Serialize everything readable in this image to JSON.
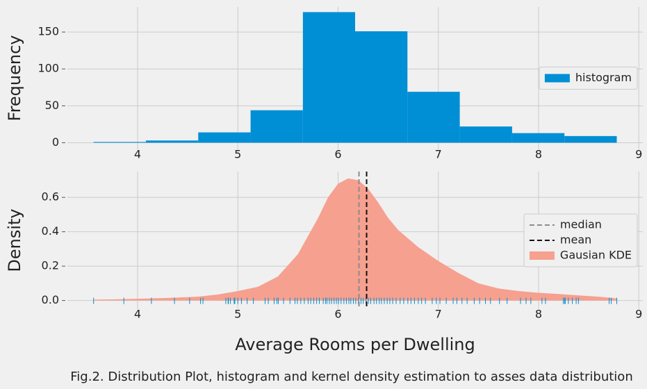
{
  "chart_data": [
    {
      "type": "histogram",
      "ylabel": "Frequency",
      "bins": [
        3.561,
        4.083,
        4.605,
        5.127,
        5.649,
        6.17,
        6.692,
        7.214,
        7.736,
        8.258,
        8.78
      ],
      "series": [
        {
          "name": "histogram",
          "color": "#008fd5",
          "values": [
            1,
            3,
            14,
            44,
            177,
            151,
            69,
            22,
            13,
            9
          ]
        }
      ],
      "xlim": [
        3.3,
        9.04
      ],
      "xticks": [
        4,
        5,
        6,
        7,
        8,
        9
      ],
      "ylim": [
        -9,
        184
      ],
      "yticks": [
        0,
        50,
        100,
        150
      ],
      "grid": true,
      "legend": "center right"
    },
    {
      "type": "kde",
      "ylabel": "Density",
      "xlabel": "Average Rooms per Dwelling",
      "x": [
        3.561,
        3.8,
        4.0,
        4.3,
        4.6,
        4.8,
        5.0,
        5.2,
        5.4,
        5.6,
        5.8,
        5.9,
        6.0,
        6.1,
        6.2,
        6.3,
        6.4,
        6.5,
        6.6,
        6.8,
        7.0,
        7.2,
        7.4,
        7.6,
        7.8,
        8.0,
        8.2,
        8.4,
        8.6,
        8.78
      ],
      "series": [
        {
          "name": "Gausian KDE",
          "color": "#f6a08f",
          "values": [
            0.005,
            0.007,
            0.01,
            0.015,
            0.022,
            0.035,
            0.055,
            0.08,
            0.14,
            0.27,
            0.48,
            0.6,
            0.68,
            0.71,
            0.7,
            0.65,
            0.57,
            0.48,
            0.41,
            0.31,
            0.23,
            0.16,
            0.1,
            0.07,
            0.055,
            0.045,
            0.038,
            0.03,
            0.022,
            0.012
          ]
        }
      ],
      "vlines": [
        {
          "name": "median",
          "value": 6.2085,
          "color": "#8b8b8b"
        },
        {
          "name": "mean",
          "value": 6.2846,
          "color": "#111111"
        }
      ],
      "rug": {
        "color": "#008fd5",
        "values": [
          3.561,
          3.863,
          4.138,
          4.368,
          4.519,
          4.628,
          4.652,
          4.88,
          4.903,
          4.906,
          4.926,
          4.963,
          4.97,
          5.0,
          5.036,
          5.093,
          5.155,
          5.272,
          5.304,
          5.362,
          5.39,
          5.404,
          5.456,
          5.52,
          5.57,
          5.594,
          5.628,
          5.663,
          5.701,
          5.727,
          5.757,
          5.786,
          5.813,
          5.852,
          5.875,
          5.889,
          5.913,
          5.935,
          5.96,
          5.983,
          6.004,
          6.03,
          6.058,
          6.083,
          6.108,
          6.127,
          6.153,
          6.176,
          6.202,
          6.229,
          6.251,
          6.279,
          6.302,
          6.326,
          6.358,
          6.383,
          6.411,
          6.433,
          6.461,
          6.49,
          6.516,
          6.545,
          6.579,
          6.619,
          6.655,
          6.696,
          6.727,
          6.762,
          6.8,
          6.833,
          6.871,
          6.939,
          6.98,
          7.016,
          7.079,
          7.148,
          7.185,
          7.236,
          7.287,
          7.358,
          7.412,
          7.47,
          7.52,
          7.61,
          7.686,
          7.82,
          7.875,
          7.923,
          8.034,
          8.069,
          8.247,
          8.259,
          8.266,
          8.297,
          8.337,
          8.375,
          8.398,
          8.704,
          8.725,
          8.78
        ]
      },
      "xlim": [
        3.3,
        9.04
      ],
      "xticks": [
        4,
        5,
        6,
        7,
        8,
        9
      ],
      "ylim": [
        -0.05,
        0.75
      ],
      "yticks": [
        {
          "value": 0,
          "label": "0.0"
        },
        0.2,
        0.4,
        0.6
      ],
      "grid": true,
      "legend": "center right"
    }
  ],
  "caption": "Fig.2. Distribution Plot, histogram and kernel density estimation to asses data distribution"
}
